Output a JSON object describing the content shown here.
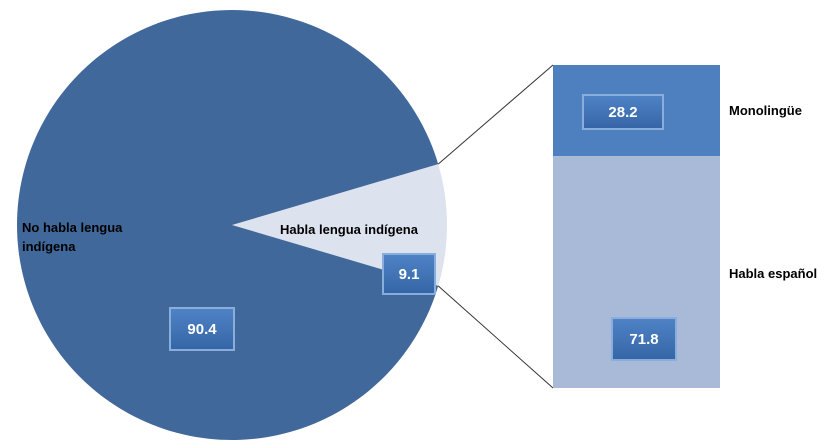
{
  "chart_data": {
    "type": "pie",
    "categories": [
      "No habla lengua indígena",
      "Habla lengua indígena"
    ],
    "values": [
      90.4,
      9.1
    ],
    "colors": [
      "#41689a",
      "#dde2ef"
    ],
    "sub_bar": {
      "categories": [
        "Monolingüe",
        "Habla español"
      ],
      "values": [
        28.2,
        71.8
      ],
      "colors": [
        "#4e7fbf",
        "#a9b9d8"
      ]
    }
  }
}
